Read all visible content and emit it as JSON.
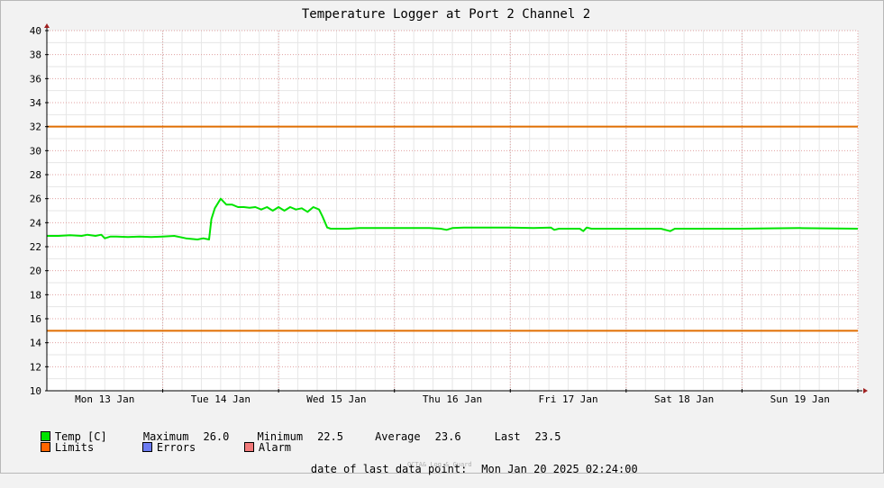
{
  "chart_data": {
    "type": "line",
    "title": "Temperature Logger at Port 2 Channel 2",
    "ylim": [
      10,
      40
    ],
    "yticks": [
      10,
      12,
      14,
      16,
      18,
      20,
      22,
      24,
      26,
      28,
      30,
      32,
      34,
      36,
      38,
      40
    ],
    "xlim": [
      0,
      7
    ],
    "xtick_labels": [
      "Mon 13 Jan",
      "Tue 14 Jan",
      "Wed 15 Jan",
      "Thu 16 Jan",
      "Fri 17 Jan",
      "Sat 18 Jan",
      "Sun 19 Jan"
    ],
    "grid": true,
    "limits": [
      32,
      15
    ],
    "series": [
      {
        "name": "Temp [C]",
        "color": "#00e400",
        "x": [
          0,
          0.1,
          0.2,
          0.3,
          0.35,
          0.42,
          0.47,
          0.5,
          0.55,
          0.6,
          0.7,
          0.8,
          0.9,
          1.0,
          1.1,
          1.2,
          1.3,
          1.35,
          1.4,
          1.42,
          1.45,
          1.5,
          1.55,
          1.6,
          1.65,
          1.7,
          1.75,
          1.8,
          1.85,
          1.9,
          1.95,
          2.0,
          2.05,
          2.1,
          2.15,
          2.2,
          2.25,
          2.3,
          2.35,
          2.38,
          2.42,
          2.45,
          2.5,
          2.6,
          2.7,
          3.0,
          3.3,
          3.4,
          3.45,
          3.5,
          3.6,
          3.8,
          4.0,
          4.2,
          4.35,
          4.38,
          4.42,
          4.5,
          4.6,
          4.63,
          4.66,
          4.7,
          4.8,
          5.0,
          5.3,
          5.38,
          5.42,
          5.5,
          6.0,
          6.5,
          7.0
        ],
        "y": [
          22.9,
          22.9,
          22.95,
          22.9,
          23.0,
          22.9,
          23.0,
          22.7,
          22.85,
          22.85,
          22.8,
          22.85,
          22.8,
          22.85,
          22.9,
          22.7,
          22.6,
          22.7,
          22.6,
          24.3,
          25.2,
          26.0,
          25.5,
          25.5,
          25.3,
          25.3,
          25.25,
          25.3,
          25.1,
          25.3,
          25.0,
          25.3,
          25.0,
          25.3,
          25.1,
          25.2,
          24.9,
          25.3,
          25.1,
          24.5,
          23.6,
          23.5,
          23.5,
          23.5,
          23.55,
          23.55,
          23.55,
          23.5,
          23.4,
          23.55,
          23.6,
          23.6,
          23.6,
          23.55,
          23.6,
          23.4,
          23.5,
          23.5,
          23.5,
          23.3,
          23.6,
          23.5,
          23.5,
          23.5,
          23.5,
          23.3,
          23.5,
          23.5,
          23.5,
          23.55,
          23.5
        ]
      }
    ]
  },
  "legend": {
    "temp_label": "Temp [C]",
    "maximum_label": "Maximum",
    "maximum_value": "26.0",
    "minimum_label": "Minimum",
    "minimum_value": "22.5",
    "average_label": "Average",
    "average_value": "23.6",
    "last_label": "Last",
    "last_value": "23.5",
    "limits_label": "Limits",
    "errors_label": "Errors",
    "alarm_label": "Alarm"
  },
  "footer": {
    "last_point_label": "date of last data point:",
    "last_point_value": "Mon Jan 20 2025 02:24:00",
    "watermark": "OCTA& Log & Guard"
  },
  "colors": {
    "temp": "#00e400",
    "limits": "#ff6600",
    "errors": "#6d7cf2",
    "alarm": "#f27a7a",
    "limit_line": "#e06e00",
    "grid_major": "#e0a0a0",
    "grid_minor": "#e6e6e6",
    "axis": "#000000",
    "arrow": "#a02020"
  }
}
